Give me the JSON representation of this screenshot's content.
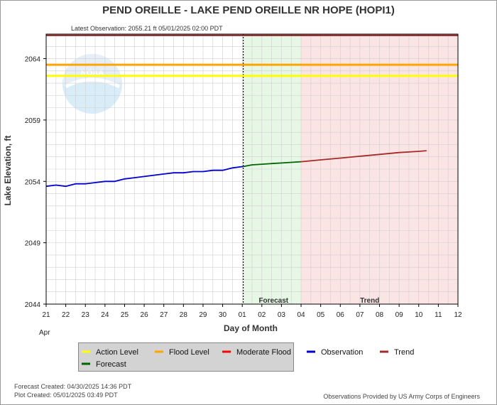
{
  "chart_data": {
    "type": "line",
    "title": "PEND OREILLE - LAKE PEND OREILLE NR HOPE  (HOPI1)",
    "latest_observation": "Latest Observation: 2055.21 ft 05/01/2025 02:00 PDT",
    "ylabel": "Lake Elevation, ft",
    "xlabel": "Day of Month",
    "month_label": "Apr",
    "ylim": [
      2044,
      2066
    ],
    "yticks": [
      2044,
      2049,
      2054,
      2059,
      2064
    ],
    "x_tick_labels": [
      "21",
      "22",
      "23",
      "24",
      "25",
      "26",
      "27",
      "28",
      "29",
      "30",
      "01",
      "02",
      "03",
      "04",
      "05",
      "06",
      "07",
      "08",
      "09",
      "10",
      "11",
      "12"
    ],
    "x_range_days": [
      0,
      21
    ],
    "grid": true,
    "thresholds": [
      {
        "name": "Action Level",
        "value": 2062.6,
        "color": "#ffff00"
      },
      {
        "name": "Flood Level",
        "value": 2063.5,
        "color": "#ffa500"
      },
      {
        "name": "Moderate Flood",
        "value": 2065.9,
        "color": "#8b1a1a"
      }
    ],
    "bands": [
      {
        "name": "Forecast",
        "from": 10.05,
        "to": 13.0,
        "color": "#e6f7e6"
      },
      {
        "name": "Trend",
        "from": 13.0,
        "to": 21.0,
        "color": "#fbe4e4"
      }
    ],
    "current_time_day": 10.05,
    "series": [
      {
        "name": "Observation",
        "color": "#0000cc",
        "x": [
          0,
          0.5,
          1,
          1.5,
          2,
          2.5,
          3,
          3.5,
          4,
          4.5,
          5,
          5.5,
          6,
          6.5,
          7,
          7.5,
          8,
          8.5,
          9,
          9.5,
          10,
          10.05
        ],
        "y": [
          2053.6,
          2053.7,
          2053.6,
          2053.8,
          2053.8,
          2053.9,
          2054.0,
          2054.0,
          2054.2,
          2054.3,
          2054.4,
          2054.5,
          2054.6,
          2054.7,
          2054.7,
          2054.8,
          2054.8,
          2054.9,
          2054.9,
          2055.1,
          2055.2,
          2055.21
        ]
      },
      {
        "name": "Forecast",
        "color": "#006400",
        "x": [
          10.05,
          10.5,
          11,
          11.5,
          12,
          12.5,
          13.0
        ],
        "y": [
          2055.21,
          2055.35,
          2055.4,
          2055.45,
          2055.5,
          2055.55,
          2055.6
        ]
      },
      {
        "name": "Trend",
        "color": "#a52a2a",
        "x": [
          13.0,
          14,
          15,
          16,
          17,
          18,
          19,
          19.4
        ],
        "y": [
          2055.6,
          2055.75,
          2055.9,
          2056.05,
          2056.2,
          2056.35,
          2056.45,
          2056.5
        ]
      }
    ],
    "legend": [
      {
        "label": "Action Level",
        "color": "#ffff00"
      },
      {
        "label": "Flood Level",
        "color": "#ffa500"
      },
      {
        "label": "Moderate Flood",
        "color": "#ff0000"
      },
      {
        "label": "Observation",
        "color": "#0000cc"
      },
      {
        "label": "Trend",
        "color": "#a52a2a"
      },
      {
        "label": "Forecast",
        "color": "#006400"
      }
    ]
  },
  "footer": {
    "forecast_created": "Forecast Created: 04/30/2025 14:36 PDT",
    "plot_created": "Plot Created: 05/01/2025 03:49 PDT",
    "provided_by": "Observations Provided by US Army Corps of Engineers"
  },
  "watermark": {
    "text": "NOAA"
  }
}
